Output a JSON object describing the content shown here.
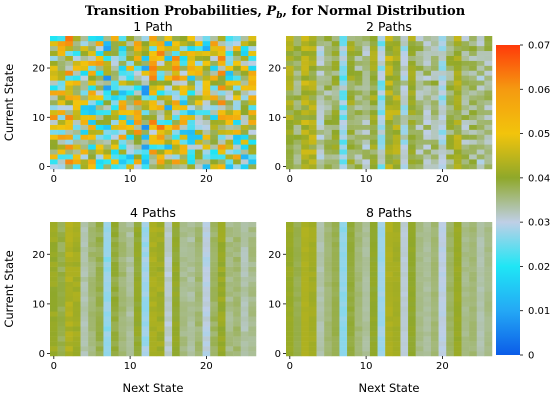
{
  "chart_data": {
    "type": "heatmap",
    "title": {
      "prefix": "Transition Probabilities, ",
      "symbol": "P",
      "subscript": "b",
      "suffix": ", for Normal Distribution"
    },
    "xlabel": "Next State",
    "ylabel": "Current State",
    "grid": false,
    "n_states": 27,
    "x_ticks": [
      0,
      10,
      20
    ],
    "y_ticks": [
      0,
      10,
      20
    ],
    "colorbar": {
      "min": 0,
      "max": 0.07,
      "ticks": [
        "0",
        "0.01",
        "0.02",
        "0.03",
        "0.04",
        "0.05",
        "0.06",
        "0.07"
      ],
      "colors": [
        "#0b5ce8",
        "#24a8f5",
        "#1fe6f5",
        "#bfcfe6",
        "#8fa82a",
        "#f2c40c",
        "#f59a10",
        "#ff3a0a"
      ],
      "placement": "right"
    },
    "column_means": [
      0.041,
      0.038,
      0.043,
      0.042,
      0.033,
      0.036,
      0.038,
      0.027,
      0.039,
      0.036,
      0.034,
      0.04,
      0.028,
      0.043,
      0.042,
      0.031,
      0.04,
      0.035,
      0.034,
      0.036,
      0.03,
      0.037,
      0.041,
      0.035,
      0.036,
      0.033,
      0.035
    ],
    "panels": [
      {
        "title": "1 Path",
        "noise": 0.022,
        "seed": 11
      },
      {
        "title": "2 Paths",
        "noise": 0.0045,
        "seed": 23
      },
      {
        "title": "4 Paths",
        "noise": 0.0012,
        "seed": 37
      },
      {
        "title": "8 Paths",
        "noise": 0.0006,
        "seed": 51
      }
    ]
  }
}
